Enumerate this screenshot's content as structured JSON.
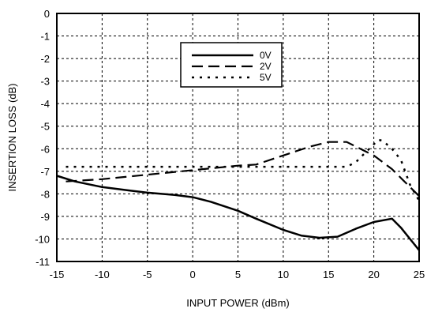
{
  "chart_data": {
    "type": "line",
    "title": "",
    "xlabel": "INPUT POWER (dBm)",
    "ylabel": "INSERTION LOSS (dB)",
    "xlim": [
      -15,
      25
    ],
    "ylim": [
      -11,
      0
    ],
    "xticks": [
      "-15",
      "-10",
      "-5",
      "0",
      "5",
      "10",
      "15",
      "20",
      "25"
    ],
    "yticks": [
      "0",
      "-1",
      "-2",
      "-3",
      "-4",
      "-5",
      "-6",
      "-7",
      "-8",
      "-9",
      "-10",
      "-11"
    ],
    "grid": true,
    "legend_position": "top-center",
    "series": [
      {
        "name": "0V",
        "style": "solid",
        "x": [
          -15,
          -13,
          -10,
          -7,
          -5,
          -2,
          0,
          2,
          5,
          7,
          10,
          12,
          14,
          16,
          18,
          20,
          22,
          23,
          24,
          25
        ],
        "y": [
          -7.2,
          -7.45,
          -7.7,
          -7.85,
          -7.95,
          -8.05,
          -8.15,
          -8.35,
          -8.75,
          -9.1,
          -9.6,
          -9.85,
          -9.95,
          -9.9,
          -9.55,
          -9.25,
          -9.1,
          -9.5,
          -10.0,
          -10.5
        ]
      },
      {
        "name": "2V",
        "style": "dash",
        "x": [
          -14,
          -10,
          -5,
          0,
          5,
          7,
          10,
          13,
          15,
          17,
          18,
          19,
          20,
          22,
          23,
          24,
          25
        ],
        "y": [
          -7.45,
          -7.35,
          -7.15,
          -6.95,
          -6.75,
          -6.7,
          -6.3,
          -5.9,
          -5.7,
          -5.7,
          -5.9,
          -6.1,
          -6.3,
          -6.9,
          -7.3,
          -7.7,
          -8.1
        ]
      },
      {
        "name": "5V",
        "style": "dot",
        "x": [
          -14,
          -10,
          -5,
          0,
          5,
          10,
          15,
          17,
          18,
          19,
          20,
          20.5,
          21,
          22,
          23,
          24,
          25
        ],
        "y": [
          -6.8,
          -6.8,
          -6.8,
          -6.8,
          -6.8,
          -6.8,
          -6.8,
          -6.8,
          -6.6,
          -6.2,
          -5.8,
          -5.6,
          -5.65,
          -6.0,
          -6.5,
          -7.6,
          -8.3
        ]
      }
    ]
  }
}
